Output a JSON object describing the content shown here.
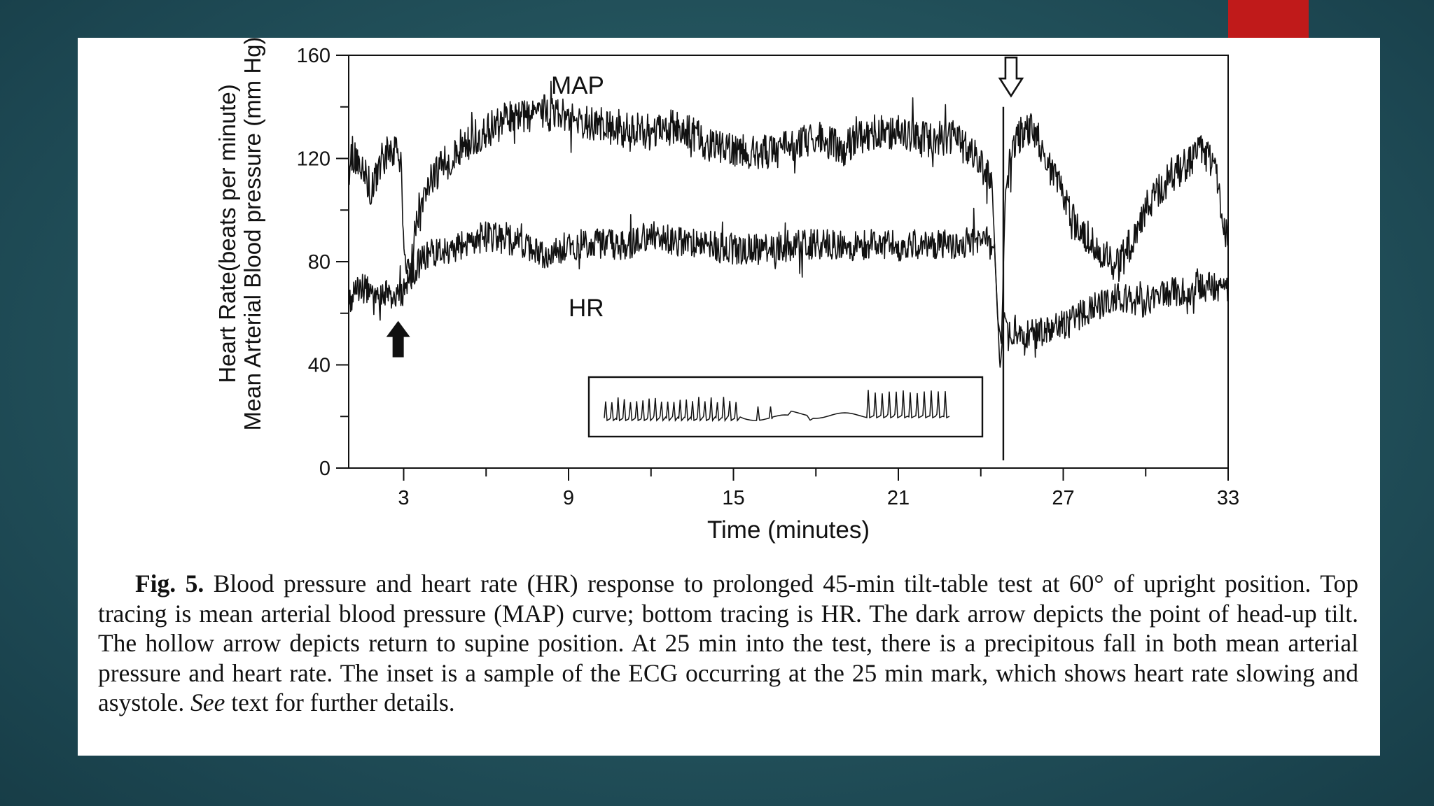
{
  "colors": {
    "accent": "#c01a1a",
    "panel": "#ffffff",
    "ink": "#111111",
    "background": "#25565f"
  },
  "chart_data": {
    "type": "line",
    "title": "",
    "xlabel": "Time (minutes)",
    "ylabel_lines": [
      "Heart Rate(beats per minute)",
      "Mean Arterial Blood pressure (mm Hg)"
    ],
    "xlim": [
      1,
      33
    ],
    "ylim": [
      0,
      160
    ],
    "x_ticks": [
      3,
      9,
      15,
      21,
      27,
      33
    ],
    "y_ticks": [
      0,
      40,
      80,
      120,
      160
    ],
    "series": [
      {
        "name": "MAP",
        "label": "MAP",
        "noise": 7,
        "points": [
          [
            1,
            122
          ],
          [
            1.5,
            118
          ],
          [
            1.8,
            108
          ],
          [
            2.2,
            120
          ],
          [
            2.6,
            123
          ],
          [
            2.9,
            120
          ],
          [
            3.0,
            90
          ],
          [
            3.2,
            72
          ],
          [
            3.5,
            98
          ],
          [
            4,
            112
          ],
          [
            5,
            124
          ],
          [
            6,
            131
          ],
          [
            7,
            136
          ],
          [
            8,
            138
          ],
          [
            9,
            136
          ],
          [
            10,
            133
          ],
          [
            11,
            132
          ],
          [
            12,
            130
          ],
          [
            13,
            133
          ],
          [
            14,
            126
          ],
          [
            15,
            124
          ],
          [
            16,
            122
          ],
          [
            17,
            124
          ],
          [
            18,
            128
          ],
          [
            19,
            124
          ],
          [
            20,
            130
          ],
          [
            21,
            130
          ],
          [
            22,
            127
          ],
          [
            23,
            128
          ],
          [
            24,
            118
          ],
          [
            24.4,
            112
          ],
          [
            24.6,
            60
          ],
          [
            24.75,
            48
          ],
          [
            24.9,
            108
          ],
          [
            25.2,
            125
          ],
          [
            25.6,
            132
          ],
          [
            26,
            130
          ],
          [
            26.5,
            116
          ],
          [
            27,
            105
          ],
          [
            27.5,
            92
          ],
          [
            28,
            88
          ],
          [
            28.5,
            82
          ],
          [
            29,
            78
          ],
          [
            29.5,
            88
          ],
          [
            30,
            100
          ],
          [
            30.5,
            108
          ],
          [
            31,
            114
          ],
          [
            31.5,
            118
          ],
          [
            32,
            122
          ],
          [
            32.5,
            118
          ],
          [
            32.8,
            95
          ],
          [
            33,
            90
          ]
        ]
      },
      {
        "name": "HR",
        "label": "HR",
        "noise": 6,
        "points": [
          [
            1,
            66
          ],
          [
            1.5,
            70
          ],
          [
            2,
            66
          ],
          [
            2.5,
            67
          ],
          [
            3,
            69
          ],
          [
            3.3,
            75
          ],
          [
            3.6,
            80
          ],
          [
            4,
            83
          ],
          [
            5,
            86
          ],
          [
            6,
            90
          ],
          [
            7,
            88
          ],
          [
            8,
            82
          ],
          [
            9,
            86
          ],
          [
            10,
            87
          ],
          [
            11,
            86
          ],
          [
            12,
            90
          ],
          [
            13,
            88
          ],
          [
            14,
            86
          ],
          [
            15,
            85
          ],
          [
            16,
            85
          ],
          [
            17,
            86
          ],
          [
            18,
            87
          ],
          [
            19,
            86
          ],
          [
            20,
            87
          ],
          [
            21,
            86
          ],
          [
            22,
            87
          ],
          [
            23,
            86
          ],
          [
            24,
            89
          ],
          [
            24.5,
            86
          ],
          [
            24.7,
            38
          ],
          [
            24.85,
            60
          ],
          [
            25.0,
            54
          ],
          [
            26,
            52
          ],
          [
            27,
            55
          ],
          [
            28,
            62
          ],
          [
            29,
            66
          ],
          [
            30,
            64
          ],
          [
            31,
            68
          ],
          [
            32,
            70
          ],
          [
            33,
            70
          ]
        ]
      }
    ],
    "annotations": [
      {
        "kind": "filled-arrow",
        "x": 2.8,
        "y": 50,
        "direction": "up",
        "meaning": "head-up tilt"
      },
      {
        "kind": "hollow-arrow",
        "x": 25.1,
        "y": 151,
        "direction": "down",
        "meaning": "return to supine"
      }
    ],
    "ecg_inset": {
      "beats_left": 22,
      "beats_right": 12,
      "pause": true
    }
  },
  "caption": {
    "fig_label": "Fig. 5.",
    "text_1": " Blood pressure and heart rate (HR) response to prolonged 45-min tilt-table test at 60° of upright position. Top tracing is mean arterial blood pressure (MAP) curve; bottom tracing is HR. The dark arrow depicts the point of head-up tilt. The hollow arrow depicts return to supine position. At 25 min into the test, there is a precipitous fall in both mean arterial pressure and heart rate. The inset is a sample of the ECG occurring at the 25 min mark, which shows heart rate slowing and asystole. ",
    "see": "See",
    "text_2": " text for further details."
  }
}
